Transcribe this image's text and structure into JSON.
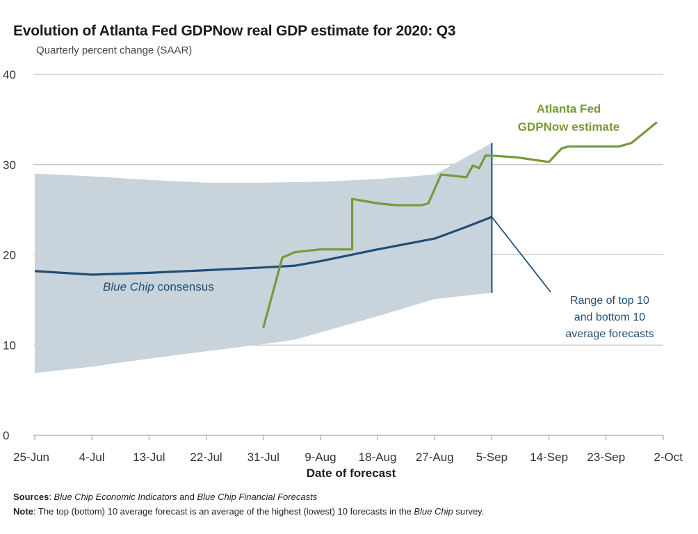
{
  "header": {
    "title": "Evolution of Atlanta Fed GDPNow real GDP estimate for 2020: Q3",
    "subtitle": "Quarterly percent change (SAAR)"
  },
  "chart_data": {
    "type": "line",
    "title": "Evolution of Atlanta Fed GDPNow real GDP estimate for 2020: Q3",
    "subtitle": "Quarterly percent change (SAAR)",
    "xlabel": "Date of forecast",
    "ylabel": "",
    "x_ticks": [
      "25-Jun",
      "4-Jul",
      "13-Jul",
      "22-Jul",
      "31-Jul",
      "9-Aug",
      "18-Aug",
      "27-Aug",
      "5-Sep",
      "14-Sep",
      "23-Sep",
      "2-Oct"
    ],
    "y_ticks": [
      0,
      10,
      20,
      30,
      40
    ],
    "xlim": [
      "2020-06-25",
      "2020-10-02"
    ],
    "ylim": [
      0,
      40
    ],
    "grid": "horizontal",
    "series": [
      {
        "name": "Blue Chip consensus",
        "color": "#1f4e79",
        "points": [
          [
            "2020-06-25",
            18.2
          ],
          [
            "2020-07-04",
            17.8
          ],
          [
            "2020-07-13",
            18.0
          ],
          [
            "2020-07-22",
            18.3
          ],
          [
            "2020-07-31",
            18.6
          ],
          [
            "2020-08-05",
            18.8
          ],
          [
            "2020-08-09",
            19.3
          ],
          [
            "2020-08-18",
            20.6
          ],
          [
            "2020-08-27",
            21.8
          ],
          [
            "2020-09-01",
            23.1
          ],
          [
            "2020-09-05",
            24.2
          ]
        ]
      },
      {
        "name": "Atlanta Fed GDPNow estimate",
        "color": "#77993b",
        "points": [
          [
            "2020-07-31",
            11.9
          ],
          [
            "2020-08-03",
            19.7
          ],
          [
            "2020-08-05",
            20.3
          ],
          [
            "2020-08-09",
            20.6
          ],
          [
            "2020-08-13",
            20.6
          ],
          [
            "2020-08-14",
            20.6
          ],
          [
            "2020-08-14",
            26.2
          ],
          [
            "2020-08-18",
            25.7
          ],
          [
            "2020-08-21",
            25.5
          ],
          [
            "2020-08-25",
            25.5
          ],
          [
            "2020-08-26",
            25.7
          ],
          [
            "2020-08-28",
            28.9
          ],
          [
            "2020-09-01",
            28.6
          ],
          [
            "2020-09-02",
            29.9
          ],
          [
            "2020-09-03",
            29.6
          ],
          [
            "2020-09-04",
            31.0
          ],
          [
            "2020-09-05",
            31.0
          ],
          [
            "2020-09-09",
            30.8
          ],
          [
            "2020-09-14",
            30.3
          ],
          [
            "2020-09-16",
            31.8
          ],
          [
            "2020-09-17",
            32.0
          ],
          [
            "2020-09-22",
            32.0
          ],
          [
            "2020-09-25",
            32.0
          ],
          [
            "2020-09-27",
            32.4
          ],
          [
            "2020-10-01",
            34.7
          ]
        ]
      }
    ],
    "range_band": {
      "name": "Range of top 10 and bottom 10 average forecasts",
      "color": "#c9d3db",
      "upper": [
        [
          "2020-06-25",
          29.0
        ],
        [
          "2020-07-04",
          28.7
        ],
        [
          "2020-07-13",
          28.3
        ],
        [
          "2020-07-22",
          28.0
        ],
        [
          "2020-07-31",
          28.0
        ],
        [
          "2020-08-09",
          28.1
        ],
        [
          "2020-08-18",
          28.4
        ],
        [
          "2020-08-27",
          28.9
        ],
        [
          "2020-09-05",
          32.4
        ]
      ],
      "lower": [
        [
          "2020-06-25",
          6.9
        ],
        [
          "2020-07-04",
          7.6
        ],
        [
          "2020-07-13",
          8.5
        ],
        [
          "2020-07-22",
          9.3
        ],
        [
          "2020-07-31",
          10.1
        ],
        [
          "2020-08-05",
          10.6
        ],
        [
          "2020-08-18",
          13.2
        ],
        [
          "2020-08-27",
          15.1
        ],
        [
          "2020-09-05",
          15.8
        ]
      ]
    },
    "annotations": [
      {
        "text": "Blue Chip consensus",
        "italic_part": "Blue Chip",
        "color": "#1f4e79"
      },
      {
        "lines": [
          "Atlanta Fed",
          "GDPNow estimate"
        ],
        "color": "#77993b",
        "bold": true
      },
      {
        "lines": [
          "Range of top 10",
          "and bottom 10",
          "average forecasts"
        ],
        "color": "#1f4e79"
      }
    ],
    "legend": "none"
  },
  "footer": {
    "sources_label": "Sources",
    "sources_sep": ": ",
    "sources_src1": "Blue Chip Economic Indicators",
    "sources_and": " and ",
    "sources_src2": "Blue Chip Financial Forecasts",
    "note_label": "Note",
    "note_text": ": The top (bottom) 10 average forecast is an average of the highest (lowest) 10 forecasts in the ",
    "note_italic": "Blue Chip",
    "note_end": " survey."
  }
}
